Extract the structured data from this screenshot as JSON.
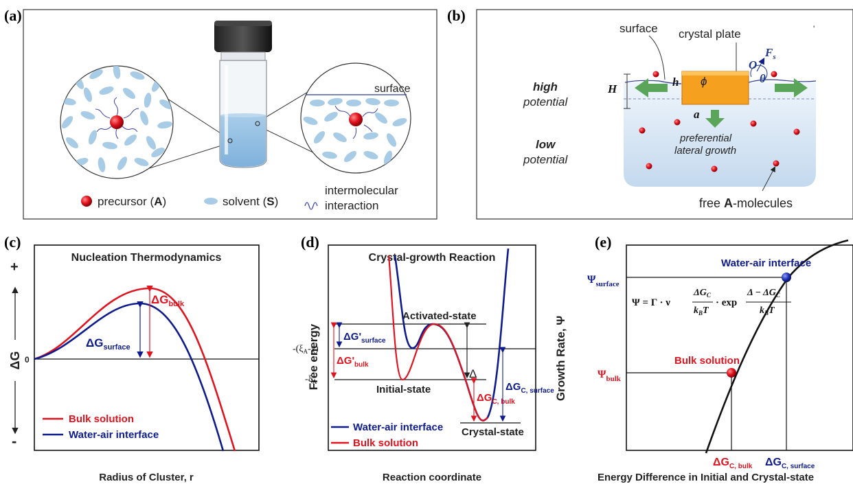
{
  "panel_labels": {
    "a": "(a)",
    "b": "(b)",
    "c": "(c)",
    "d": "(d)",
    "e": "(e)"
  },
  "panel_a": {
    "surface_label": "surface",
    "legend_precursor_pre": "precursor (",
    "legend_precursor_bold": "A",
    "legend_precursor_post": ")",
    "legend_solvent_pre": "solvent (",
    "legend_solvent_bold": "S",
    "legend_solvent_post": ")",
    "legend_interaction_line1": "intermolecular",
    "legend_interaction_line2": "interaction"
  },
  "panel_b": {
    "surface_label": "surface",
    "crystal_label": "crystal plate",
    "high_line1": "high",
    "high_line2": "potential",
    "low_line1": "low",
    "low_line2": "potential",
    "H": "H",
    "h": "h",
    "a": "a",
    "O": "O",
    "phi": "ϕ",
    "theta": "θ",
    "Fs": "F",
    "Fs_sub": "s",
    "growth_line1": "preferential",
    "growth_line2": "lateral growth",
    "free_pre": "free ",
    "free_bold": "A",
    "free_post": "-molecules"
  },
  "panel_c": {
    "title": "Nucleation Thermodynamics",
    "ylabel": "ΔG",
    "xlabel": "Radius of Cluster, r",
    "plus": "+",
    "minus": "-",
    "zero": "0",
    "dg_bulk": "ΔG",
    "dg_bulk_sub": "bulk",
    "dg_surface": "ΔG",
    "dg_surface_sub": "surface",
    "legend": [
      "Bulk solution",
      "Water-air interface"
    ]
  },
  "panel_d": {
    "title": "Crystal-growth Reaction",
    "ylabel": "Free energy",
    "xlabel": "Reaction coordinate",
    "activated": "Activated-state",
    "initial": "Initial-state",
    "crystal": "Crystal-state",
    "xi_chi": "-(ξ",
    "xi_chi_sub": "A",
    "xi_chi_post": "-χ)",
    "xi": "-ξ",
    "xi_sub": "A",
    "delta": "Δ",
    "dgp_surface": "ΔG'",
    "dgp_surface_sub": "surface",
    "dgp_bulk": "ΔG'",
    "dgp_bulk_sub": "bulk",
    "dgc_bulk": "ΔG",
    "dgc_bulk_sub": "C, bulk",
    "dgc_surface": "ΔG",
    "dgc_surface_sub": "C, surface",
    "legend": [
      "Water-air interface",
      "Bulk solution"
    ]
  },
  "panel_e": {
    "ylabel": "Growth Rate, Ψ",
    "xlabel": "Energy Difference in Initial and Crystal-state",
    "water": "Water-air interface",
    "bulk": "Bulk solution",
    "psi_surface": "Ψ",
    "psi_surface_sub": "surface",
    "psi_bulk": "Ψ",
    "psi_bulk_sub": "bulk",
    "dgc_bulk": "ΔG",
    "dgc_bulk_sub": "C, bulk",
    "dgc_surface": "ΔG",
    "dgc_surface_sub": "C, surface",
    "eq_lhs": "Ψ = Γ ·  ν",
    "eq_num1": "ΔG",
    "eq_num1_sub": "C",
    "eq_den1": "k",
    "eq_den1_sub": "B",
    "eq_den1_post": "T",
    "eq_mid": "· exp",
    "eq_num2": "Δ − ΔG",
    "eq_num2_sub": "C",
    "eq_den2": "k",
    "eq_den2_sub": "B",
    "eq_den2_post": "T"
  },
  "colors": {
    "red": "#e0141e",
    "blue": "#0d1b8c",
    "orange": "#f5a01e",
    "green": "#5aa55a",
    "solvent": "#a9cce6"
  }
}
